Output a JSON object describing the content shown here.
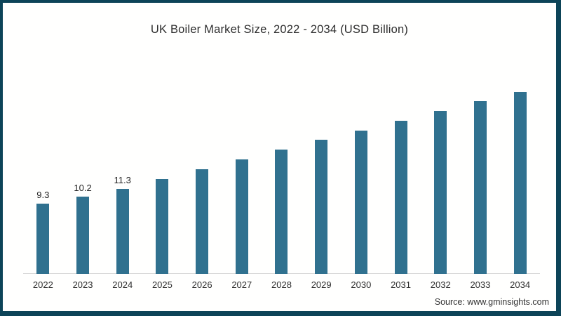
{
  "frame": {
    "border_color": "#0d4458",
    "background_color": "#fffffe"
  },
  "header": {
    "title": "UK Boiler Market Size, 2022 - 2034 (USD Billion)"
  },
  "footer": {
    "source": "Source: www.gminsights.com"
  },
  "chart_data": {
    "type": "bar",
    "title": "UK Boiler Market Size, 2022 - 2034 (USD Billion)",
    "unit": "USD Billion",
    "xlabel": "",
    "ylabel": "",
    "categories": [
      "2022",
      "2023",
      "2024",
      "2025",
      "2026",
      "2027",
      "2028",
      "2029",
      "2030",
      "2031",
      "2032",
      "2033",
      "2034"
    ],
    "values": [
      9.3,
      10.2,
      11.3,
      12.6,
      13.9,
      15.2,
      16.5,
      17.8,
      19.0,
      20.3,
      21.6,
      22.9,
      24.1
    ],
    "visible_value_labels": [
      "9.3",
      "10.2",
      "11.3",
      "",
      "",
      "",
      "",
      "",
      "",
      "",
      "",
      "",
      ""
    ],
    "ylim": [
      0,
      28
    ],
    "grid": false,
    "legend": false,
    "bar_color": "#30718f",
    "axis_line_color": "#d9d9d9"
  }
}
